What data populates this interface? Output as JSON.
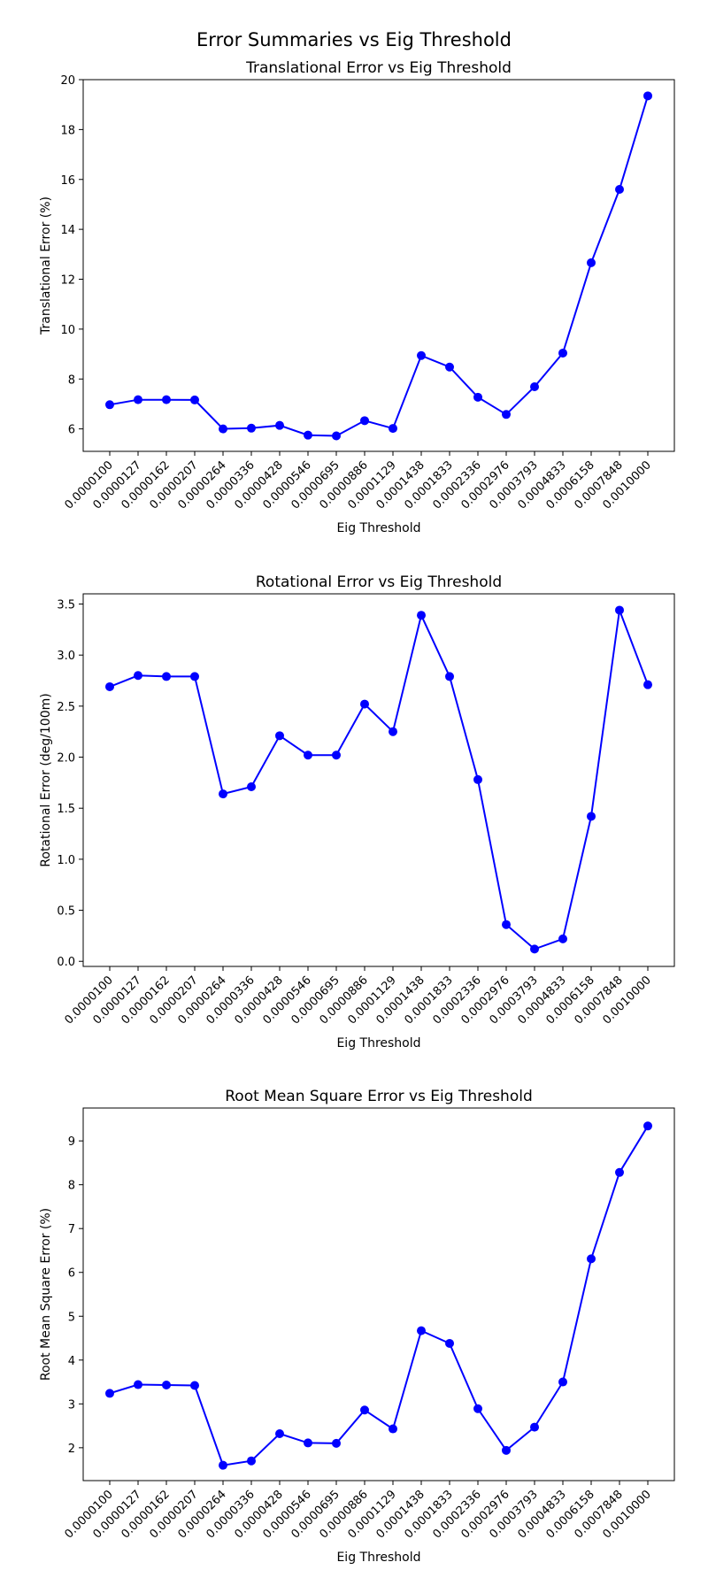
{
  "figure_title": "Error Summaries vs Eig Threshold",
  "chart_data": [
    {
      "type": "line",
      "title": "Translational Error vs Eig Threshold",
      "xlabel": "Eig Threshold",
      "ylabel": "Translational Error (%)",
      "categories": [
        "0.0000100",
        "0.0000127",
        "0.0000162",
        "0.0000207",
        "0.0000264",
        "0.0000336",
        "0.0000428",
        "0.0000546",
        "0.0000695",
        "0.0000886",
        "0.0001129",
        "0.0001438",
        "0.0001833",
        "0.0002336",
        "0.0002976",
        "0.0003793",
        "0.0004833",
        "0.0006158",
        "0.0007848",
        "0.0010000"
      ],
      "values": [
        6.97,
        7.17,
        7.17,
        7.16,
        6.0,
        6.03,
        6.14,
        5.75,
        5.72,
        6.33,
        6.02,
        8.94,
        8.48,
        7.27,
        6.58,
        7.69,
        9.04,
        12.66,
        15.6,
        19.35
      ],
      "ylim": [
        5.1,
        20.0
      ],
      "yticks": [
        6,
        8,
        10,
        12,
        14,
        16,
        18,
        20
      ],
      "color": "#0000ff",
      "grid": false
    },
    {
      "type": "line",
      "title": "Rotational Error vs Eig Threshold",
      "xlabel": "Eig Threshold",
      "ylabel": "Rotational Error (deg/100m)",
      "categories": [
        "0.0000100",
        "0.0000127",
        "0.0000162",
        "0.0000207",
        "0.0000264",
        "0.0000336",
        "0.0000428",
        "0.0000546",
        "0.0000695",
        "0.0000886",
        "0.0001129",
        "0.0001438",
        "0.0001833",
        "0.0002336",
        "0.0002976",
        "0.0003793",
        "0.0004833",
        "0.0006158",
        "0.0007848",
        "0.0010000"
      ],
      "values": [
        2.69,
        2.8,
        2.79,
        2.79,
        1.64,
        1.71,
        2.21,
        2.02,
        2.02,
        2.52,
        2.25,
        3.39,
        2.79,
        1.78,
        0.36,
        0.12,
        0.22,
        1.42,
        3.44,
        2.71
      ],
      "ylim": [
        -0.05,
        3.6
      ],
      "yticks": [
        "0.0",
        "0.5",
        "1.0",
        "1.5",
        "2.0",
        "2.5",
        "3.0",
        "3.5"
      ],
      "color": "#0000ff",
      "grid": false
    },
    {
      "type": "line",
      "title": "Root Mean Square Error vs Eig Threshold",
      "xlabel": "Eig Threshold",
      "ylabel": "Root Mean Square Error (%)",
      "categories": [
        "0.0000100",
        "0.0000127",
        "0.0000162",
        "0.0000207",
        "0.0000264",
        "0.0000336",
        "0.0000428",
        "0.0000546",
        "0.0000695",
        "0.0000886",
        "0.0001129",
        "0.0001438",
        "0.0001833",
        "0.0002336",
        "0.0002976",
        "0.0003793",
        "0.0004833",
        "0.0006158",
        "0.0007848",
        "0.0010000"
      ],
      "values": [
        3.24,
        3.44,
        3.43,
        3.42,
        1.6,
        1.7,
        2.32,
        2.11,
        2.1,
        2.86,
        2.43,
        4.67,
        4.38,
        2.89,
        1.94,
        2.47,
        3.5,
        6.31,
        8.28,
        9.34
      ],
      "ylim": [
        1.25,
        9.75
      ],
      "yticks": [
        2,
        3,
        4,
        5,
        6,
        7,
        8,
        9
      ],
      "color": "#0000ff",
      "grid": false
    }
  ]
}
